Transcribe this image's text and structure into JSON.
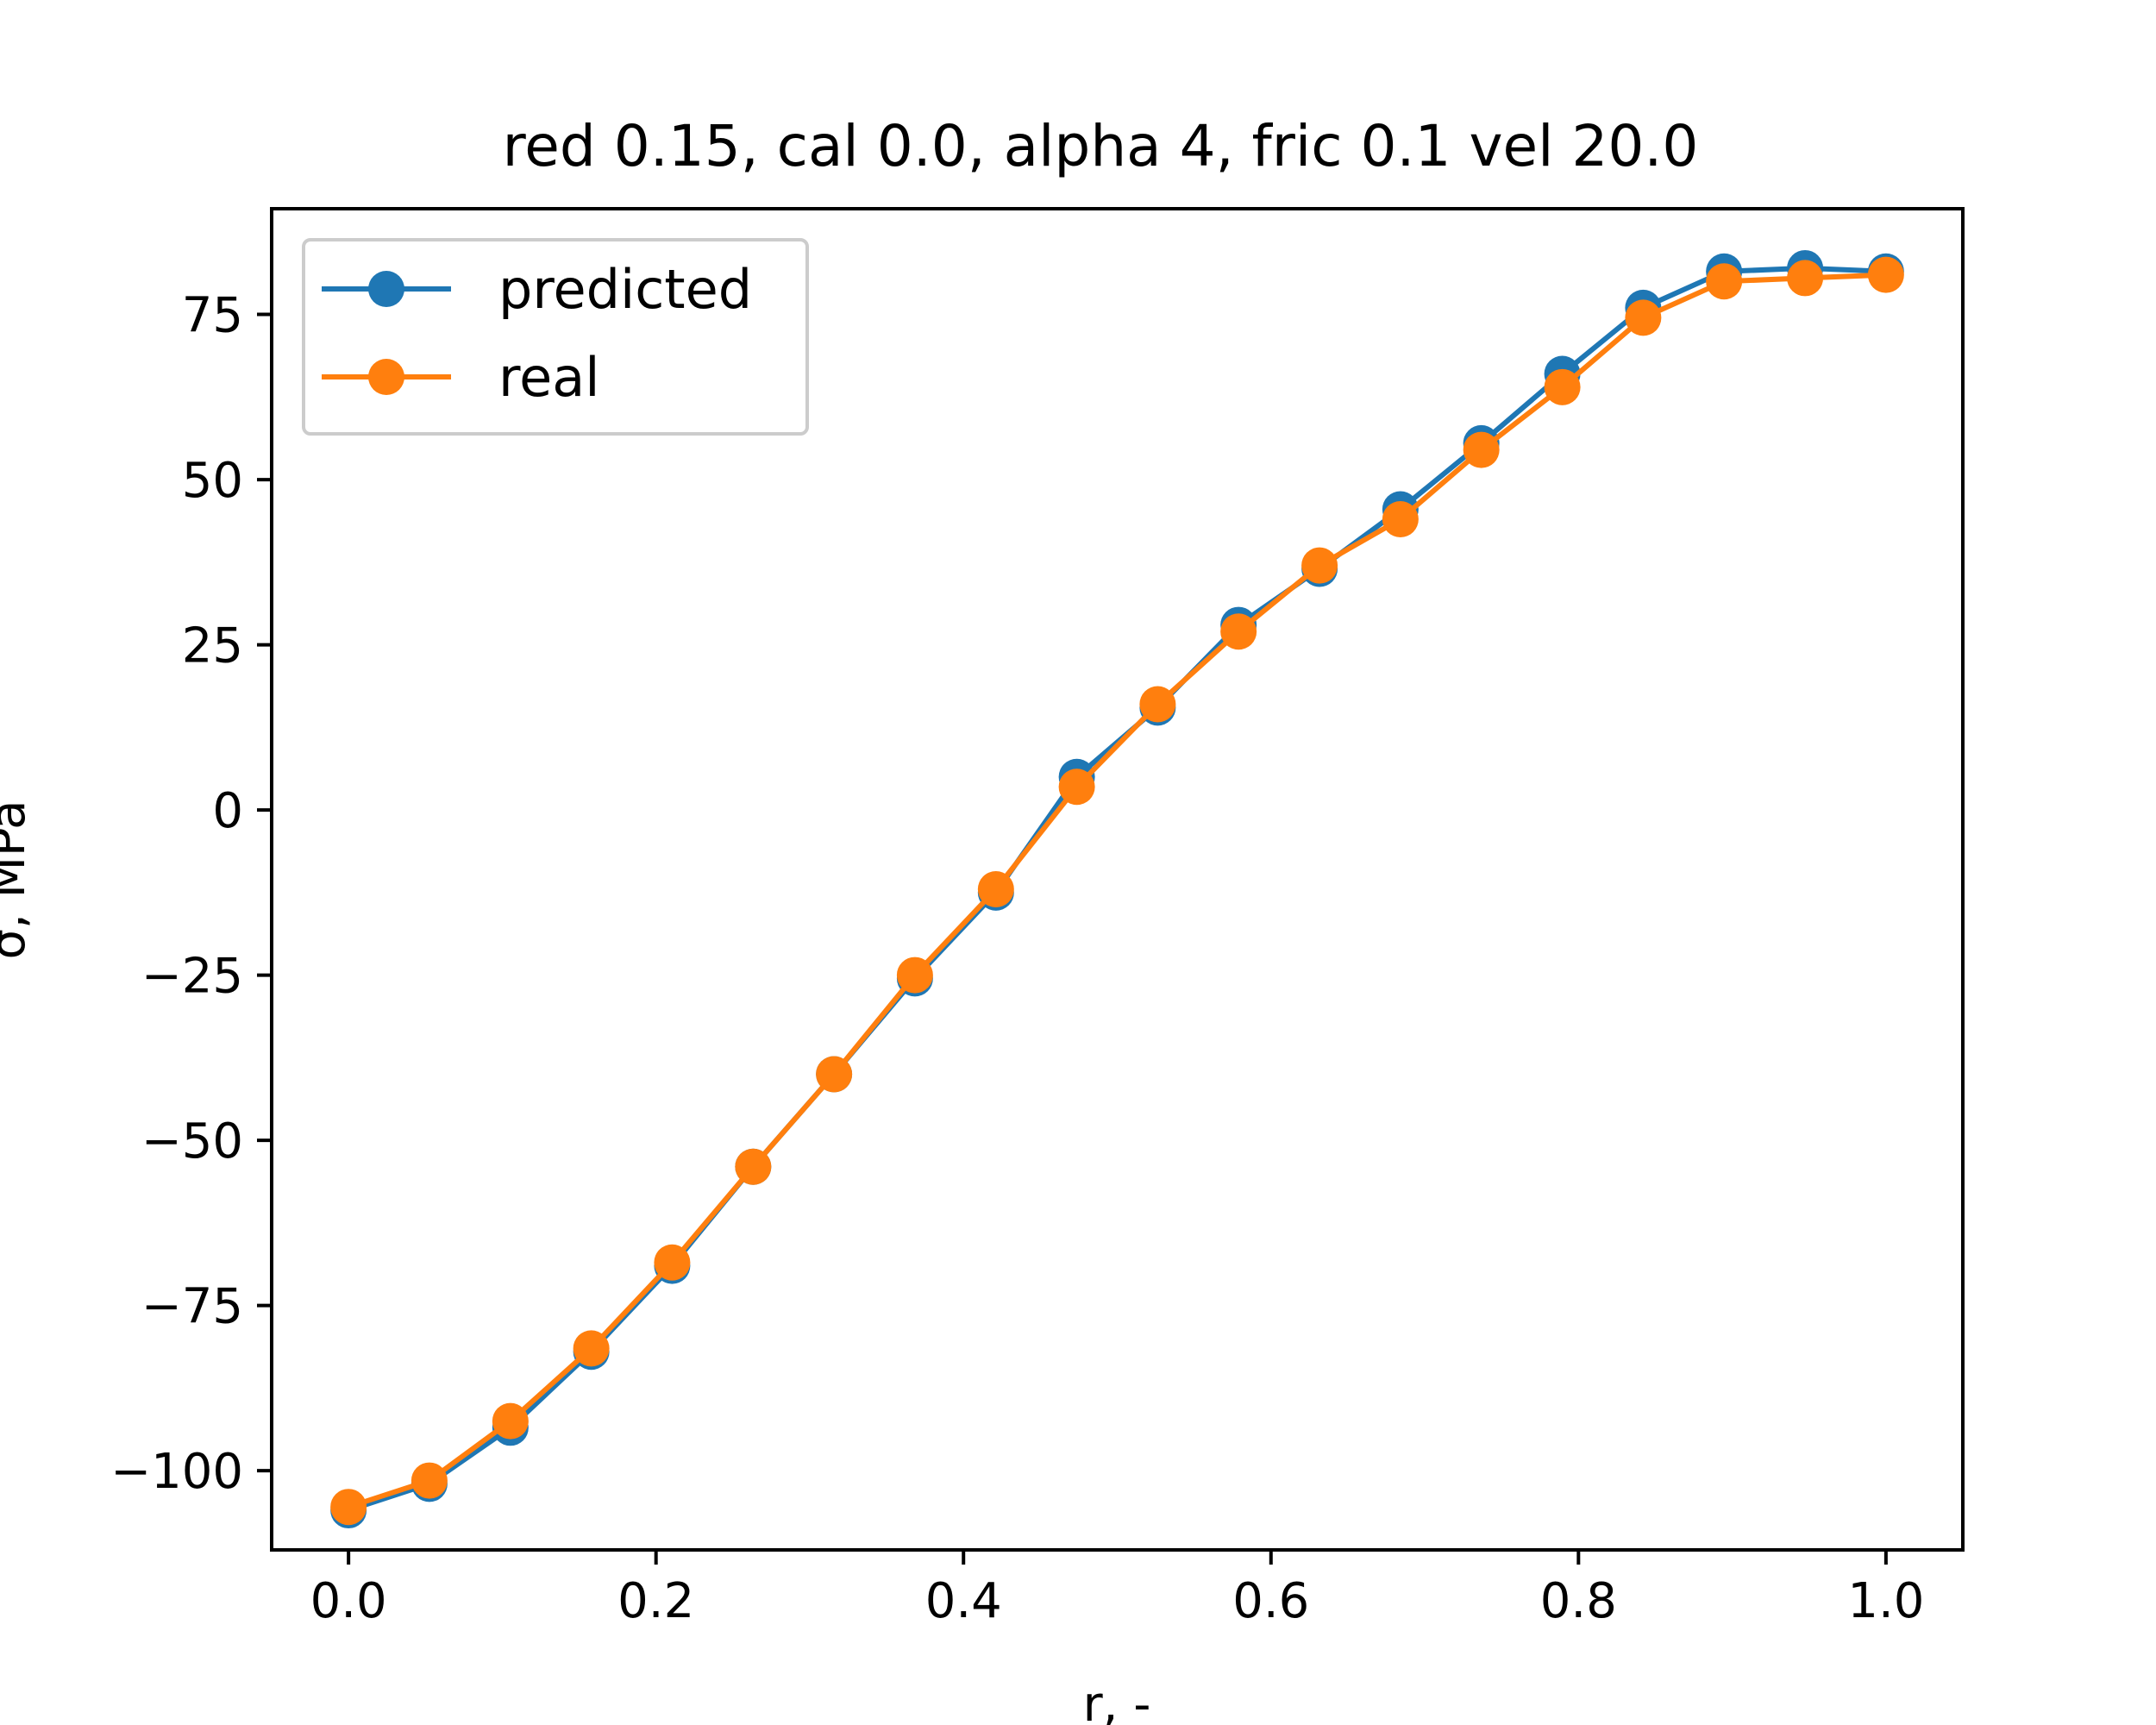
{
  "chart_data": {
    "type": "line",
    "title": "red 0.15, cal 0.0, alpha 4, fric 0.1 vel 20.0",
    "xlabel": "r, -",
    "ylabel": "σ, MPa",
    "xlim": [
      -0.05,
      1.05
    ],
    "ylim": [
      -112,
      91
    ],
    "xticks": [
      0.0,
      0.2,
      0.4,
      0.6,
      0.8,
      1.0
    ],
    "xtick_labels": [
      "0.0",
      "0.2",
      "0.4",
      "0.6",
      "0.8",
      "1.0"
    ],
    "yticks": [
      75,
      50,
      25,
      0,
      -25,
      -50,
      -75,
      -100
    ],
    "ytick_labels": [
      "75",
      "50",
      "25",
      "0",
      "−25",
      "−50",
      "−75",
      "−100"
    ],
    "grid": false,
    "legend_position": "top-left",
    "x": [
      0.0,
      0.0526,
      0.1053,
      0.1579,
      0.2105,
      0.2632,
      0.3158,
      0.3684,
      0.4211,
      0.4737,
      0.5263,
      0.5789,
      0.6316,
      0.6842,
      0.7368,
      0.7895,
      0.8421,
      0.8947,
      0.9474,
      1.0
    ],
    "series": [
      {
        "name": "predicted",
        "color": "#1f77b4",
        "values": [
          -106,
          -102,
          -93.5,
          -82,
          -69,
          -54,
          -40,
          -25.5,
          -12.5,
          5,
          15.5,
          28,
          36.5,
          45.5,
          55.5,
          66,
          76,
          81.5,
          82,
          81.5
        ]
      },
      {
        "name": "real",
        "color": "#ff7f0e",
        "values": [
          -105.5,
          -101.5,
          -92.5,
          -81.5,
          -68.5,
          -54,
          -40,
          -25,
          -12,
          3.5,
          16,
          27,
          37,
          44,
          54.5,
          64,
          74.5,
          80,
          80.5,
          81
        ]
      }
    ]
  }
}
